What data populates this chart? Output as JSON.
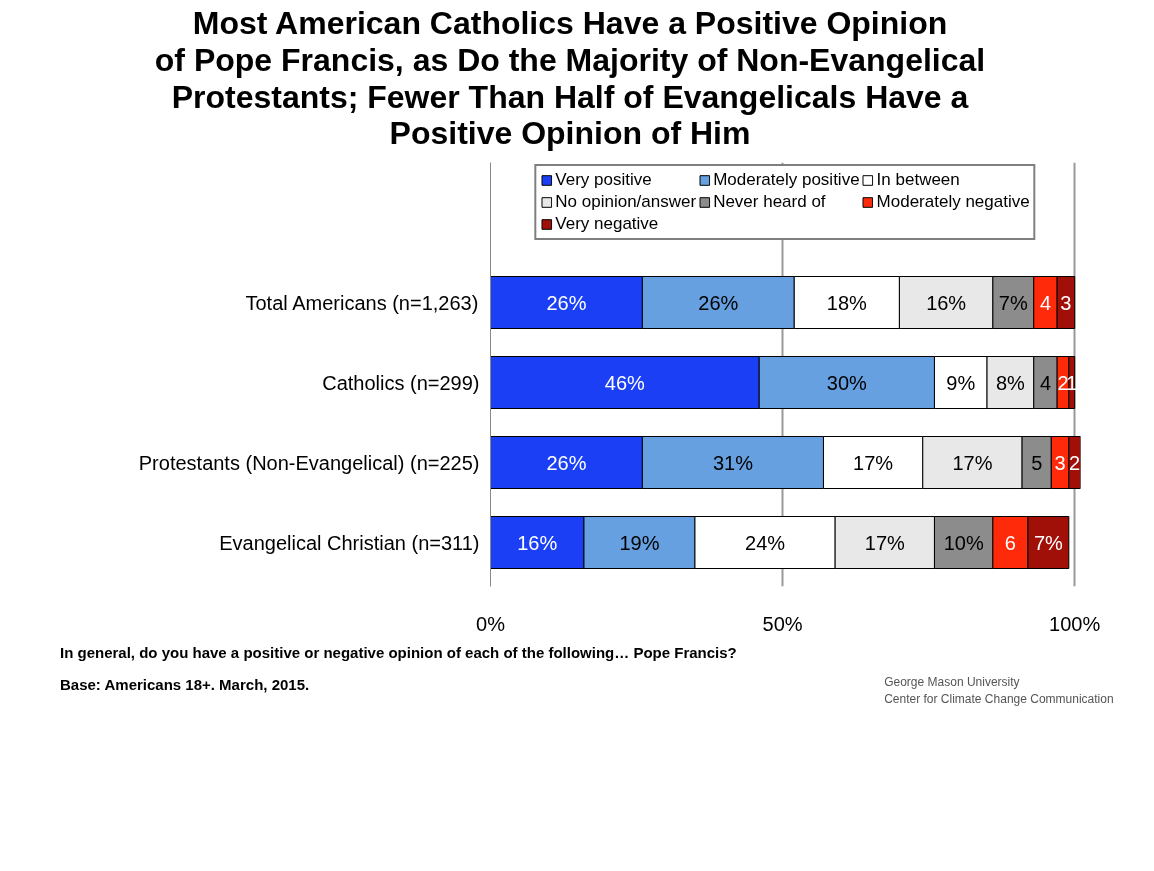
{
  "chart_data": {
    "type": "bar",
    "orientation": "horizontal",
    "stacked": true,
    "title": "Most American Catholics Have a Positive Opinion\nof Pope Francis, as Do the Majority of Non-Evangelical\nProtestants; Fewer Than Half of Evangelicals Have a\nPositive Opinion of Him",
    "categories": [
      "Total Americans (n=1,263)",
      "Catholics (n=299)",
      "Protestants (Non-Evangelical) (n=225)",
      "Evangelical Christian (n=311)"
    ],
    "series": [
      {
        "name": "Very positive",
        "color": "#1a3ff5",
        "values": [
          26,
          46,
          26,
          16
        ],
        "value_labels": [
          "26%",
          "46%",
          "26%",
          "16%"
        ]
      },
      {
        "name": "Moderately positive",
        "color": "#66a0e0",
        "values": [
          26,
          30,
          31,
          19
        ],
        "value_labels": [
          "26%",
          "30%",
          "31%",
          "19%"
        ]
      },
      {
        "name": "In between",
        "color": "#ffffff",
        "values": [
          18,
          9,
          17,
          24
        ],
        "value_labels": [
          "18%",
          "9%",
          "17%",
          "24%"
        ]
      },
      {
        "name": "No opinion/answer",
        "color": "#e8e8e8",
        "values": [
          16,
          8,
          17,
          17
        ],
        "value_labels": [
          "16%",
          "8%",
          "17%",
          "17%"
        ]
      },
      {
        "name": "Never heard of",
        "color": "#8c8c8c",
        "values": [
          7,
          4,
          5,
          10
        ],
        "value_labels": [
          "7%",
          "4",
          "5",
          "10%"
        ]
      },
      {
        "name": "Moderately negative",
        "color": "#ff2a0a",
        "values": [
          4,
          2,
          3,
          6
        ],
        "value_labels": [
          "4",
          "2",
          "3",
          "6"
        ]
      },
      {
        "name": "Very negative",
        "color": "#a01008",
        "values": [
          3,
          1,
          2,
          7
        ],
        "value_labels": [
          "3",
          "1",
          "2",
          "7%"
        ]
      }
    ],
    "xlim": [
      0,
      101
    ],
    "xticks": [
      {
        "value": 0,
        "label": "0%"
      },
      {
        "value": 50,
        "label": "50%"
      },
      {
        "value": 100,
        "label": "100%"
      }
    ],
    "grid": "x",
    "legend": "top",
    "annotations": [
      "In general, do you have a positive or negative opinion of each of the following… Pope Francis?",
      "Base: Americans 18+. March, 2015.",
      "George Mason University\nCenter for Climate Change Communication"
    ]
  }
}
